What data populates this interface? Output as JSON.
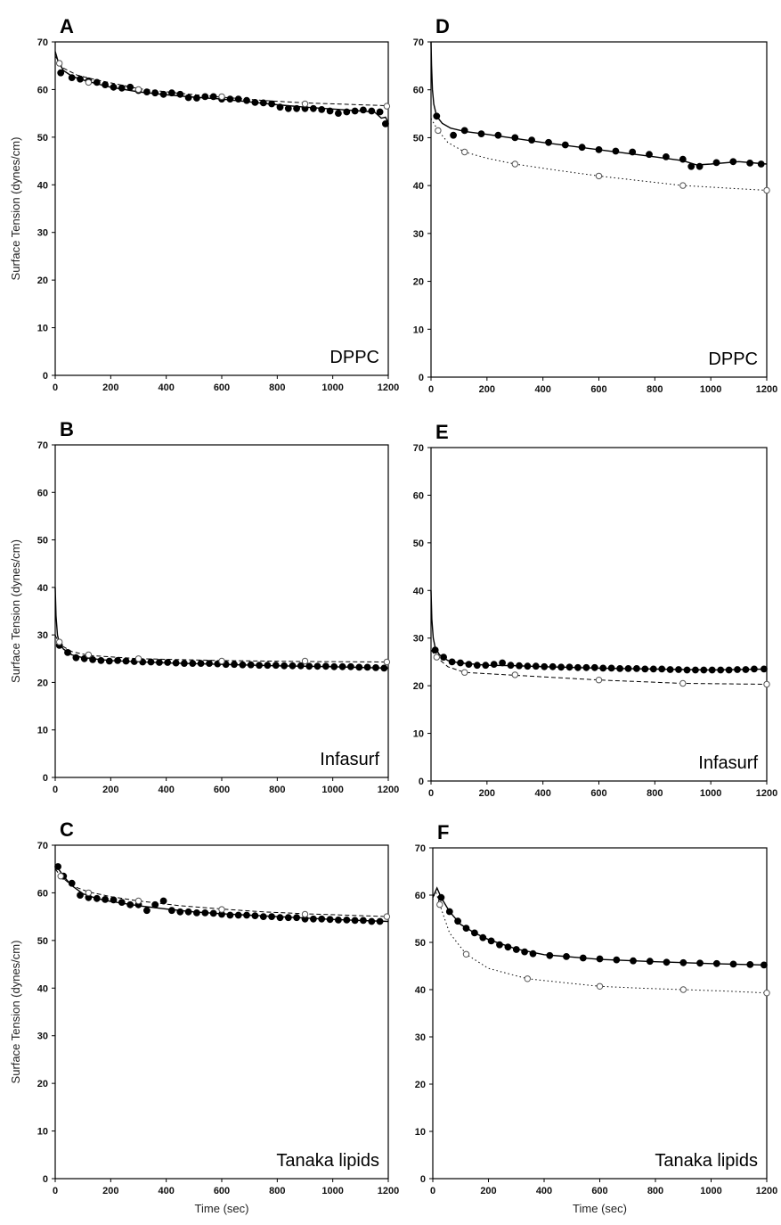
{
  "chart_data": [
    {
      "panel": "A",
      "type": "scatter",
      "annotation": "DPPC",
      "xlabel": "",
      "ylabel": "Surface Tension (dynes/cm)",
      "xlim": [
        0,
        1200
      ],
      "ylim": [
        0,
        70
      ],
      "xticks": [
        0,
        200,
        400,
        600,
        800,
        1000,
        1200
      ],
      "yticks": [
        0,
        10,
        20,
        30,
        40,
        50,
        60,
        70
      ],
      "grid": false,
      "series": [
        {
          "style": "filled-solid",
          "x": [
            20,
            60,
            90,
            120,
            150,
            180,
            210,
            240,
            270,
            300,
            330,
            360,
            390,
            420,
            450,
            480,
            510,
            540,
            570,
            600,
            630,
            660,
            690,
            720,
            750,
            780,
            810,
            840,
            870,
            900,
            930,
            960,
            990,
            1020,
            1050,
            1080,
            1110,
            1140,
            1170,
            1190
          ],
          "y": [
            63.5,
            62.5,
            62.2,
            61.8,
            61.5,
            61.0,
            60.5,
            60.3,
            60.5,
            59.8,
            59.5,
            59.3,
            59.0,
            59.3,
            59.0,
            58.3,
            58.2,
            58.5,
            58.5,
            58.0,
            58.0,
            58.0,
            57.7,
            57.3,
            57.2,
            57.0,
            56.3,
            56.0,
            56.0,
            56.0,
            56.0,
            55.8,
            55.5,
            55.0,
            55.3,
            55.5,
            55.7,
            55.5,
            55.3,
            52.8
          ],
          "curve_x": [
            0,
            10,
            30,
            60,
            100,
            150,
            200,
            300,
            400,
            500,
            600,
            700,
            800,
            900,
            1000,
            1100,
            1150,
            1175,
            1190,
            1200
          ],
          "curve_y": [
            68,
            66,
            64,
            62.8,
            62,
            61.2,
            60.5,
            59.5,
            58.9,
            58.4,
            58,
            57.4,
            56.8,
            56.3,
            55.9,
            55.5,
            55.3,
            54.0,
            54.2,
            53.0
          ]
        },
        {
          "style": "open-dashed",
          "x": [
            15,
            120,
            300,
            600,
            900,
            1195
          ],
          "y": [
            65.5,
            61.5,
            60.0,
            58.5,
            57.0,
            56.5
          ],
          "curve_x": [
            0,
            30,
            80,
            150,
            300,
            450,
            600,
            750,
            900,
            1050,
            1200
          ],
          "curve_y": [
            67,
            64.5,
            63,
            62,
            60.2,
            59.2,
            58.4,
            57.7,
            57.2,
            56.9,
            56.6
          ]
        }
      ]
    },
    {
      "panel": "B",
      "type": "scatter",
      "annotation": "Infasurf",
      "xlabel": "",
      "ylabel": "Surface Tension (dynes/cm)",
      "xlim": [
        0,
        1200
      ],
      "ylim": [
        0,
        70
      ],
      "xticks": [
        0,
        200,
        400,
        600,
        800,
        1000,
        1200
      ],
      "yticks": [
        0,
        10,
        20,
        30,
        40,
        50,
        60,
        70
      ],
      "grid": false,
      "series": [
        {
          "style": "filled-solid",
          "x": [
            15,
            45,
            75,
            105,
            135,
            165,
            195,
            225,
            255,
            285,
            315,
            345,
            375,
            405,
            435,
            465,
            495,
            525,
            555,
            585,
            615,
            645,
            675,
            705,
            735,
            765,
            795,
            825,
            855,
            885,
            915,
            945,
            975,
            1005,
            1035,
            1065,
            1095,
            1125,
            1155,
            1185
          ],
          "y": [
            27.8,
            26.3,
            25.2,
            25.0,
            24.8,
            24.6,
            24.5,
            24.6,
            24.5,
            24.4,
            24.3,
            24.3,
            24.2,
            24.2,
            24.1,
            24.0,
            24.0,
            24.0,
            24.0,
            23.9,
            23.8,
            23.8,
            23.7,
            23.7,
            23.6,
            23.6,
            23.6,
            23.5,
            23.5,
            23.5,
            23.4,
            23.4,
            23.4,
            23.3,
            23.3,
            23.3,
            23.2,
            23.2,
            23.1,
            23.0
          ],
          "curve_x": [
            0,
            3,
            8,
            15,
            30,
            60,
            100,
            200,
            400,
            600,
            800,
            1000,
            1200
          ],
          "curve_y": [
            40,
            34,
            30,
            28.2,
            27,
            25.8,
            25.2,
            24.6,
            24.1,
            23.8,
            23.5,
            23.3,
            23.0
          ]
        },
        {
          "style": "open-dashed",
          "x": [
            15,
            120,
            300,
            600,
            900,
            1195
          ],
          "y": [
            28.5,
            25.8,
            25.0,
            24.5,
            24.5,
            24.3
          ],
          "curve_x": [
            0,
            15,
            60,
            120,
            300,
            600,
            900,
            1200
          ],
          "curve_y": [
            30,
            28.0,
            26.5,
            25.7,
            25.0,
            24.6,
            24.4,
            24.3
          ]
        }
      ]
    },
    {
      "panel": "C",
      "type": "scatter",
      "annotation": "Tanaka lipids",
      "xlabel": "Time (sec)",
      "ylabel": "Surface Tension (dynes/cm)",
      "xlim": [
        0,
        1200
      ],
      "ylim": [
        0,
        70
      ],
      "xticks": [
        0,
        200,
        400,
        600,
        800,
        1000,
        1200
      ],
      "yticks": [
        0,
        10,
        20,
        30,
        40,
        50,
        60,
        70
      ],
      "grid": false,
      "series": [
        {
          "style": "filled-solid",
          "x": [
            10,
            30,
            60,
            90,
            120,
            150,
            180,
            210,
            240,
            270,
            300,
            330,
            360,
            390,
            420,
            450,
            480,
            510,
            540,
            570,
            600,
            630,
            660,
            690,
            720,
            750,
            780,
            810,
            840,
            870,
            900,
            930,
            960,
            990,
            1020,
            1050,
            1080,
            1110,
            1140,
            1170
          ],
          "y": [
            65.5,
            63.5,
            62.0,
            59.5,
            59.0,
            58.8,
            58.6,
            58.5,
            58.0,
            57.5,
            57.5,
            56.3,
            57.5,
            58.3,
            56.3,
            56.0,
            56.0,
            55.8,
            55.8,
            55.7,
            55.5,
            55.3,
            55.3,
            55.3,
            55.2,
            55.0,
            55.0,
            54.8,
            54.8,
            54.8,
            54.5,
            54.5,
            54.5,
            54.4,
            54.3,
            54.3,
            54.2,
            54.2,
            54.0,
            54.0
          ],
          "curve_x": [
            0,
            30,
            60,
            100,
            150,
            200,
            300,
            400,
            500,
            600,
            700,
            800,
            900,
            1000,
            1100,
            1200
          ],
          "curve_y": [
            66,
            63.5,
            61.5,
            59.8,
            58.8,
            58.2,
            57.3,
            56.6,
            56.0,
            55.6,
            55.3,
            55.0,
            54.7,
            54.4,
            54.2,
            54.0
          ]
        },
        {
          "style": "open-dashed",
          "x": [
            20,
            120,
            300,
            600,
            900,
            1195
          ],
          "y": [
            63.5,
            60.0,
            58.3,
            56.5,
            55.5,
            55.0
          ],
          "curve_x": [
            0,
            20,
            60,
            120,
            200,
            300,
            450,
            600,
            750,
            900,
            1050,
            1200
          ],
          "curve_y": [
            65,
            63.5,
            61.5,
            60.2,
            59.2,
            58.3,
            57.3,
            56.6,
            56.0,
            55.6,
            55.3,
            55.0
          ]
        }
      ]
    },
    {
      "panel": "D",
      "type": "scatter",
      "annotation": "DPPC",
      "xlabel": "",
      "ylabel": "",
      "xlim": [
        0,
        1200
      ],
      "ylim": [
        0,
        70
      ],
      "xticks": [
        0,
        200,
        400,
        600,
        800,
        1000,
        1200
      ],
      "yticks": [
        0,
        10,
        20,
        30,
        40,
        50,
        60,
        70
      ],
      "grid": false,
      "series": [
        {
          "style": "filled-solid",
          "x": [
            20,
            80,
            120,
            180,
            240,
            300,
            360,
            420,
            480,
            540,
            600,
            660,
            720,
            780,
            840,
            900,
            930,
            960,
            1020,
            1080,
            1140,
            1180
          ],
          "y": [
            54.5,
            50.5,
            51.5,
            50.8,
            50.5,
            50.0,
            49.5,
            49.0,
            48.5,
            48.0,
            47.5,
            47.2,
            47.0,
            46.5,
            46.0,
            45.5,
            44.0,
            44.0,
            44.8,
            45.0,
            44.7,
            44.5
          ],
          "curve_x": [
            0,
            2,
            5,
            10,
            20,
            40,
            70,
            120,
            200,
            400,
            600,
            800,
            900,
            950,
            1000,
            1100,
            1200
          ],
          "curve_y": [
            70,
            65,
            60,
            57,
            54.5,
            53,
            52,
            51.3,
            50.7,
            49.0,
            47.5,
            46.0,
            45.2,
            44.3,
            44.5,
            45.0,
            44.5
          ]
        },
        {
          "style": "open-dotted",
          "x": [
            25,
            120,
            300,
            600,
            900,
            1200
          ],
          "y": [
            51.5,
            47.0,
            44.5,
            42.0,
            40.0,
            39.0
          ],
          "curve_x": [
            0,
            25,
            60,
            120,
            200,
            300,
            450,
            600,
            750,
            900,
            1050,
            1200
          ],
          "curve_y": [
            54,
            51.5,
            49,
            47.0,
            45.7,
            44.5,
            43.2,
            42.0,
            41.0,
            40.0,
            39.5,
            39.0
          ]
        }
      ]
    },
    {
      "panel": "E",
      "type": "scatter",
      "annotation": "Infasurf",
      "xlabel": "",
      "ylabel": "",
      "xlim": [
        0,
        1200
      ],
      "ylim": [
        0,
        70
      ],
      "xticks": [
        0,
        200,
        400,
        600,
        800,
        1000,
        1200
      ],
      "yticks": [
        0,
        10,
        20,
        30,
        40,
        50,
        60,
        70
      ],
      "grid": false,
      "series": [
        {
          "style": "filled-solid",
          "x": [
            15,
            45,
            75,
            105,
            135,
            165,
            195,
            225,
            255,
            285,
            315,
            345,
            375,
            405,
            435,
            465,
            495,
            525,
            555,
            585,
            615,
            645,
            675,
            705,
            735,
            765,
            795,
            825,
            855,
            885,
            915,
            945,
            975,
            1005,
            1035,
            1065,
            1095,
            1125,
            1155,
            1190
          ],
          "y": [
            27.5,
            26.0,
            25.0,
            24.8,
            24.5,
            24.3,
            24.3,
            24.5,
            24.8,
            24.3,
            24.2,
            24.1,
            24.1,
            24.0,
            24.0,
            23.9,
            23.9,
            23.8,
            23.8,
            23.8,
            23.7,
            23.7,
            23.6,
            23.6,
            23.6,
            23.5,
            23.5,
            23.5,
            23.4,
            23.4,
            23.3,
            23.3,
            23.3,
            23.3,
            23.3,
            23.3,
            23.4,
            23.4,
            23.5,
            23.5
          ],
          "curve_x": [
            0,
            3,
            8,
            15,
            30,
            60,
            100,
            200,
            300,
            400,
            600,
            800,
            1000,
            1200
          ],
          "curve_y": [
            40,
            34,
            30,
            28,
            26.5,
            25.3,
            24.8,
            24.3,
            24.2,
            24.0,
            23.7,
            23.5,
            23.3,
            23.5
          ]
        },
        {
          "style": "open-dashed",
          "x": [
            20,
            120,
            300,
            600,
            900,
            1200
          ],
          "y": [
            26.0,
            22.8,
            22.3,
            21.2,
            20.5,
            20.3
          ],
          "curve_x": [
            0,
            20,
            60,
            120,
            300,
            600,
            900,
            1200
          ],
          "curve_y": [
            27.5,
            26.0,
            24.0,
            22.8,
            22.2,
            21.2,
            20.5,
            20.3
          ]
        }
      ]
    },
    {
      "panel": "F",
      "type": "scatter",
      "annotation": "Tanaka lipids",
      "xlabel": "Time (sec)",
      "ylabel": "",
      "xlim": [
        0,
        1200
      ],
      "ylim": [
        0,
        70
      ],
      "xticks": [
        0,
        200,
        400,
        600,
        800,
        1000,
        1200
      ],
      "yticks": [
        0,
        10,
        20,
        30,
        40,
        50,
        60,
        70
      ],
      "grid": false,
      "series": [
        {
          "style": "filled-solid",
          "x": [
            30,
            60,
            90,
            120,
            150,
            180,
            210,
            240,
            270,
            300,
            330,
            360,
            420,
            480,
            540,
            600,
            660,
            720,
            780,
            840,
            900,
            960,
            1020,
            1080,
            1140,
            1190
          ],
          "y": [
            59.5,
            56.5,
            54.5,
            53.0,
            52.0,
            51.0,
            50.3,
            49.5,
            49.0,
            48.5,
            48.0,
            47.6,
            47.2,
            47.0,
            46.7,
            46.5,
            46.3,
            46.1,
            46.0,
            45.8,
            45.7,
            45.6,
            45.5,
            45.4,
            45.3,
            45.2
          ],
          "curve_x": [
            0,
            15,
            30,
            60,
            100,
            150,
            200,
            300,
            400,
            500,
            600,
            800,
            1000,
            1200
          ],
          "curve_y": [
            59.5,
            61.5,
            59.5,
            56.5,
            53.8,
            52.0,
            50.6,
            48.6,
            47.4,
            46.9,
            46.4,
            45.9,
            45.5,
            45.2
          ]
        },
        {
          "style": "open-dotted",
          "x": [
            25,
            120,
            340,
            600,
            900,
            1200
          ],
          "y": [
            58.0,
            47.5,
            42.3,
            40.7,
            40.0,
            39.3
          ],
          "curve_x": [
            0,
            10,
            25,
            60,
            120,
            200,
            340,
            500,
            600,
            750,
            900,
            1050,
            1200
          ],
          "curve_y": [
            59,
            61,
            58.0,
            52,
            47.5,
            44.5,
            42.3,
            41.3,
            40.7,
            40.3,
            40.0,
            39.7,
            39.3
          ]
        }
      ]
    }
  ]
}
